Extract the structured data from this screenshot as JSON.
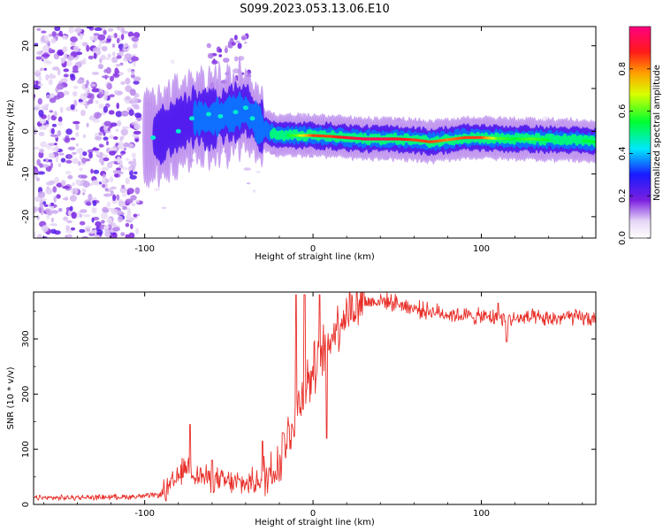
{
  "title": "S099.2023.053.13.06.E10",
  "chart_data": [
    {
      "type": "heatmap",
      "xlabel": "Height of straight line (km)",
      "ylabel": "Frequency (Hz)",
      "xlim": [
        -166,
        168
      ],
      "ylim": [
        -25,
        24.5
      ],
      "x_ticks": [
        -100,
        0,
        100
      ],
      "y_ticks": [
        -20,
        -10,
        0,
        10,
        20
      ],
      "colorbar": {
        "label": "Normalized spectral amplitude",
        "range": [
          0.0,
          1.0
        ],
        "ticks": [
          0.0,
          0.2,
          0.4,
          0.6,
          0.8
        ]
      },
      "ridge": {
        "x": [
          -100,
          -90,
          -80,
          -70,
          -60,
          -50,
          -40,
          -30,
          -20,
          -10,
          0,
          10,
          20,
          30,
          40,
          50,
          60,
          70,
          80,
          90,
          100,
          110,
          120,
          130,
          140,
          150,
          160,
          168
        ],
        "freq": [
          -1.5,
          -1.0,
          1.5,
          3.5,
          3.0,
          4.0,
          5.0,
          0.5,
          -1.0,
          -1.0,
          -1.0,
          -1.2,
          -1.5,
          -1.8,
          -1.8,
          -1.8,
          -2.0,
          -2.5,
          -2.0,
          -1.5,
          -1.5,
          -1.7,
          -1.8,
          -1.8,
          -2.0,
          -2.0,
          -2.2,
          -2.5
        ],
        "amplitude": [
          0.15,
          0.2,
          0.25,
          0.3,
          0.3,
          0.35,
          0.3,
          0.4,
          0.5,
          0.6,
          0.85,
          0.85,
          0.9,
          0.95,
          0.95,
          0.9,
          0.85,
          0.85,
          0.8,
          0.85,
          0.85,
          0.6,
          0.55,
          0.6,
          0.55,
          0.5,
          0.55,
          0.55
        ]
      }
    },
    {
      "type": "line",
      "xlabel": "Height of straight line (km)",
      "ylabel": "SNR (10 * v/v)",
      "xlim": [
        -166,
        168
      ],
      "ylim": [
        0,
        385
      ],
      "x_ticks": [
        -100,
        0,
        100
      ],
      "y_ticks": [
        0,
        100,
        200,
        300
      ],
      "series": [
        {
          "color": "#e8302a",
          "x": [
            -166,
            -150,
            -130,
            -110,
            -100,
            -90,
            -85,
            -80,
            -75,
            -70,
            -60,
            -50,
            -40,
            -30,
            -25,
            -20,
            -15,
            -10,
            -5,
            0,
            5,
            10,
            15,
            20,
            25,
            30,
            40,
            50,
            60,
            70,
            80,
            90,
            100,
            110,
            120,
            130,
            140,
            150,
            160,
            168
          ],
          "y": [
            12,
            12,
            13,
            14,
            15,
            18,
            30,
            50,
            70,
            55,
            45,
            40,
            38,
            45,
            60,
            80,
            120,
            170,
            210,
            240,
            270,
            300,
            330,
            350,
            360,
            365,
            370,
            365,
            355,
            350,
            345,
            342,
            340,
            338,
            336,
            338,
            335,
            340,
            338,
            335
          ]
        }
      ],
      "spikes": [
        {
          "x": -73,
          "y": 145
        },
        {
          "x": -60,
          "y": 80
        },
        {
          "x": -30,
          "y": 115
        },
        {
          "x": -18,
          "y": 130
        },
        {
          "x": -10,
          "y": 380
        },
        {
          "x": -5,
          "y": 380
        },
        {
          "x": 4,
          "y": 380
        },
        {
          "x": 8,
          "y": 120
        },
        {
          "x": 30,
          "y": 385
        },
        {
          "x": 110,
          "y": 365
        },
        {
          "x": 115,
          "y": 295
        }
      ]
    }
  ]
}
